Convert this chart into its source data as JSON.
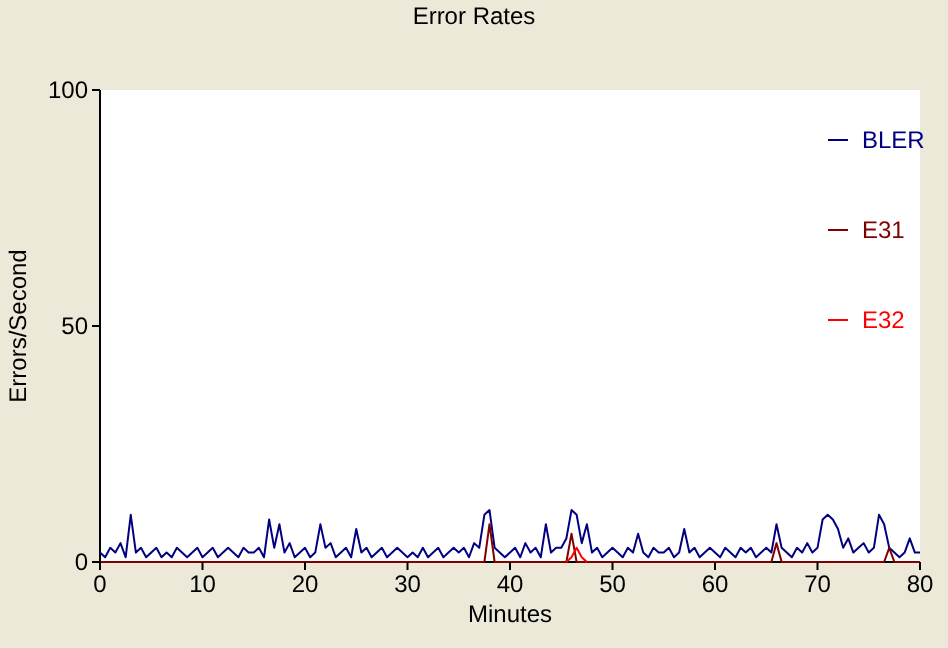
{
  "chart_data": {
    "type": "line",
    "title": "Error Rates",
    "xlabel": "Minutes",
    "ylabel": "Errors/Second",
    "xlim": [
      0,
      80
    ],
    "xticks": [
      0,
      10,
      20,
      30,
      40,
      50,
      60,
      70,
      80
    ],
    "ylim": [
      0,
      100
    ],
    "yticks": [
      0,
      50,
      100
    ],
    "grid": false,
    "legend": "right",
    "marker": "none",
    "line_style": "solid",
    "series": [
      {
        "name": "BLER",
        "color": "#000080",
        "x": [
          0,
          0.5,
          1,
          1.5,
          2,
          2.5,
          3,
          3.5,
          4,
          4.5,
          5,
          5.5,
          6,
          6.5,
          7,
          7.5,
          8,
          8.5,
          9,
          9.5,
          10,
          10.5,
          11,
          11.5,
          12,
          12.5,
          13,
          13.5,
          14,
          14.5,
          15,
          15.5,
          16,
          16.5,
          17,
          17.5,
          18,
          18.5,
          19,
          19.5,
          20,
          20.5,
          21,
          21.5,
          22,
          22.5,
          23,
          23.5,
          24,
          24.5,
          25,
          25.5,
          26,
          26.5,
          27,
          27.5,
          28,
          28.5,
          29,
          29.5,
          30,
          30.5,
          31,
          31.5,
          32,
          32.5,
          33,
          33.5,
          34,
          34.5,
          35,
          35.5,
          36,
          36.5,
          37,
          37.5,
          38,
          38.5,
          39,
          39.5,
          40,
          40.5,
          41,
          41.5,
          42,
          42.5,
          43,
          43.5,
          44,
          44.5,
          45,
          45.5,
          46,
          46.5,
          47,
          47.5,
          48,
          48.5,
          49,
          49.5,
          50,
          50.5,
          51,
          51.5,
          52,
          52.5,
          53,
          53.5,
          54,
          54.5,
          55,
          55.5,
          56,
          56.5,
          57,
          57.5,
          58,
          58.5,
          59,
          59.5,
          60,
          60.5,
          61,
          61.5,
          62,
          62.5,
          63,
          63.5,
          64,
          64.5,
          65,
          65.5,
          66,
          66.5,
          67,
          67.5,
          68,
          68.5,
          69,
          69.5,
          70,
          70.5,
          71,
          71.5,
          72,
          72.5,
          73,
          73.5,
          74,
          74.5,
          75,
          75.5,
          76,
          76.5,
          77,
          77.5,
          78,
          78.5,
          79,
          79.5,
          80
        ],
        "values": [
          2,
          1,
          3,
          2,
          4,
          1,
          10,
          2,
          3,
          1,
          2,
          3,
          1,
          2,
          1,
          3,
          2,
          1,
          2,
          3,
          1,
          2,
          3,
          1,
          2,
          3,
          2,
          1,
          3,
          2,
          2,
          3,
          1,
          9,
          3,
          8,
          2,
          4,
          1,
          2,
          3,
          1,
          2,
          8,
          3,
          4,
          1,
          2,
          3,
          1,
          7,
          2,
          3,
          1,
          2,
          3,
          1,
          2,
          3,
          2,
          1,
          2,
          1,
          3,
          1,
          2,
          3,
          1,
          2,
          3,
          2,
          3,
          1,
          4,
          3,
          10,
          11,
          3,
          2,
          1,
          2,
          3,
          1,
          4,
          2,
          3,
          1,
          8,
          2,
          3,
          3,
          5,
          11,
          10,
          4,
          8,
          2,
          3,
          1,
          2,
          3,
          2,
          1,
          3,
          2,
          6,
          2,
          1,
          3,
          2,
          2,
          3,
          1,
          2,
          7,
          2,
          3,
          1,
          2,
          3,
          2,
          1,
          3,
          2,
          1,
          3,
          2,
          3,
          1,
          2,
          3,
          2,
          8,
          3,
          2,
          1,
          3,
          2,
          4,
          2,
          3,
          9,
          10,
          9,
          7,
          3,
          5,
          2,
          3,
          4,
          2,
          3,
          10,
          8,
          3,
          2,
          1,
          2,
          5,
          2,
          2
        ]
      },
      {
        "name": "E31",
        "color": "#800000",
        "x": [
          0,
          37.5,
          38,
          38.5,
          45.5,
          46,
          46.5,
          65.5,
          66,
          66.5,
          76.5,
          77,
          77.5,
          80
        ],
        "values": [
          0,
          0,
          8,
          0,
          0,
          6,
          0,
          0,
          4,
          0,
          0,
          3,
          0,
          0
        ]
      },
      {
        "name": "E32",
        "color": "#ff0000",
        "x": [
          45.5,
          46,
          46.5,
          47,
          47.5
        ],
        "values": [
          0,
          1,
          3,
          1,
          0
        ]
      }
    ]
  }
}
